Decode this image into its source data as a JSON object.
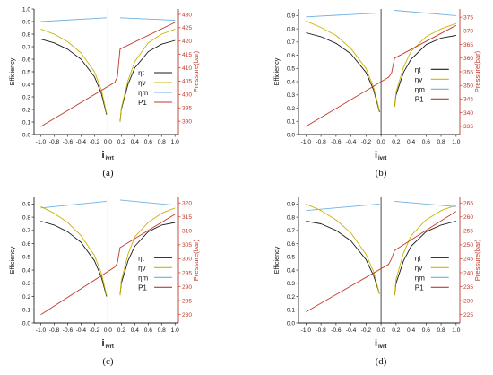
{
  "colors": {
    "eta_t": "#1a1a1a",
    "eta_v": "#c9b400",
    "eta_m": "#6fb1e3",
    "P1": "#c0392b",
    "pressure_axis": "#c0392b"
  },
  "chart_data": [
    {
      "type": "line",
      "panel_label": "(a)",
      "xlabel_main": "i",
      "xlabel_sub": "ivrt",
      "ylabel": "Efficiency",
      "y2label": "Pressure(bar)",
      "xlim": [
        -1.1,
        1.05
      ],
      "ylim": [
        0,
        1.0
      ],
      "y2lim": [
        385,
        432
      ],
      "xticks": [
        -1.0,
        -0.8,
        -0.6,
        -0.4,
        -0.2,
        0.0,
        0.2,
        0.4,
        0.6,
        0.8,
        1.0
      ],
      "xtick_labels": [
        "-1.0",
        "-0.8",
        "-0.6",
        "-0.4",
        "-0.2",
        "0.0",
        "0.2",
        "0.4",
        "0.6",
        "0.8",
        "1.0"
      ],
      "yticks": [
        0.0,
        0.1,
        0.2,
        0.3,
        0.4,
        0.5,
        0.6,
        0.7,
        0.8,
        0.9,
        1.0
      ],
      "ytick_labels": [
        "0.0",
        "0.1",
        "0.2",
        "0.3",
        "0.4",
        "0.5",
        "0.6",
        "0.7",
        "0.8",
        "0.9",
        "1.0"
      ],
      "y2ticks": [
        390,
        395,
        400,
        405,
        410,
        415,
        420,
        425,
        430
      ],
      "y2tick_labels": [
        "390",
        "395",
        "400",
        "405",
        "410",
        "415",
        "420",
        "425",
        "430"
      ],
      "series": [
        {
          "name": "ηt",
          "axis": "left",
          "color_key": "eta_t",
          "segments": [
            {
              "x": [
                -1.0,
                -0.8,
                -0.6,
                -0.4,
                -0.2,
                -0.1,
                -0.02
              ],
              "y": [
                0.76,
                0.73,
                0.68,
                0.6,
                0.46,
                0.33,
                0.16
              ]
            },
            {
              "x": [
                0.18,
                0.2,
                0.3,
                0.4,
                0.6,
                0.8,
                1.0
              ],
              "y": [
                0.1,
                0.2,
                0.4,
                0.53,
                0.66,
                0.72,
                0.75
              ]
            }
          ]
        },
        {
          "name": "ηv",
          "axis": "left",
          "color_key": "eta_v",
          "segments": [
            {
              "x": [
                -1.0,
                -0.8,
                -0.6,
                -0.4,
                -0.2,
                -0.1,
                -0.02
              ],
              "y": [
                0.84,
                0.8,
                0.74,
                0.65,
                0.5,
                0.36,
                0.17
              ]
            },
            {
              "x": [
                0.18,
                0.2,
                0.3,
                0.4,
                0.6,
                0.8,
                1.0
              ],
              "y": [
                0.1,
                0.21,
                0.43,
                0.58,
                0.73,
                0.8,
                0.84
              ]
            }
          ]
        },
        {
          "name": "ηm",
          "axis": "left",
          "color_key": "eta_m",
          "segments": [
            {
              "x": [
                -1.0,
                -0.02
              ],
              "y": [
                0.9,
                0.93
              ]
            },
            {
              "x": [
                0.18,
                1.0
              ],
              "y": [
                0.93,
                0.91
              ]
            }
          ]
        },
        {
          "name": "P1",
          "axis": "right",
          "color_key": "P1",
          "segments": [
            {
              "x": [
                -1.0,
                0.1,
                0.14,
                0.18,
                1.0
              ],
              "y": [
                388,
                404.5,
                406.5,
                417,
                427
              ]
            }
          ]
        }
      ]
    },
    {
      "type": "line",
      "panel_label": "(b)",
      "xlabel_main": "i",
      "xlabel_sub": "ivrt",
      "ylabel": "Efficiency",
      "y2label": "Pressure(bar)",
      "xlim": [
        -1.1,
        1.05
      ],
      "ylim": [
        0,
        0.95
      ],
      "y2lim": [
        332,
        378
      ],
      "xticks": [
        -1.0,
        -0.8,
        -0.6,
        -0.4,
        -0.2,
        0.0,
        0.2,
        0.4,
        0.6,
        0.8,
        1.0
      ],
      "xtick_labels": [
        "-1.0",
        "-0.8",
        "-0.6",
        "-0.4",
        "-0.2",
        "0.0",
        "0.2",
        "0.4",
        "0.6",
        "0.8",
        "1.0"
      ],
      "yticks": [
        0.0,
        0.1,
        0.2,
        0.3,
        0.4,
        0.5,
        0.6,
        0.7,
        0.8,
        0.9
      ],
      "ytick_labels": [
        "0.0",
        "0.1",
        "0.2",
        "0.3",
        "0.4",
        "0.5",
        "0.6",
        "0.7",
        "0.8",
        "0.9"
      ],
      "y2ticks": [
        335,
        340,
        345,
        350,
        355,
        360,
        365,
        370,
        375
      ],
      "y2tick_labels": [
        "335",
        "340",
        "345",
        "350",
        "355",
        "360",
        "365",
        "370",
        "375"
      ],
      "series": [
        {
          "name": "ηt",
          "axis": "left",
          "color_key": "eta_t",
          "segments": [
            {
              "x": [
                -1.0,
                -0.8,
                -0.6,
                -0.4,
                -0.2,
                -0.1,
                -0.02
              ],
              "y": [
                0.77,
                0.74,
                0.69,
                0.61,
                0.47,
                0.34,
                0.17
              ]
            },
            {
              "x": [
                0.18,
                0.2,
                0.3,
                0.4,
                0.6,
                0.8,
                1.0
              ],
              "y": [
                0.21,
                0.3,
                0.47,
                0.57,
                0.68,
                0.73,
                0.75
              ]
            }
          ]
        },
        {
          "name": "ηv",
          "axis": "left",
          "color_key": "eta_v",
          "segments": [
            {
              "x": [
                -1.0,
                -0.8,
                -0.6,
                -0.4,
                -0.2,
                -0.1,
                -0.02
              ],
              "y": [
                0.86,
                0.81,
                0.75,
                0.65,
                0.5,
                0.36,
                0.18
              ]
            },
            {
              "x": [
                0.18,
                0.2,
                0.3,
                0.4,
                0.6,
                0.8,
                1.0
              ],
              "y": [
                0.21,
                0.32,
                0.51,
                0.63,
                0.74,
                0.8,
                0.84
              ]
            }
          ]
        },
        {
          "name": "ηm",
          "axis": "left",
          "color_key": "eta_m",
          "segments": [
            {
              "x": [
                -1.0,
                -0.02
              ],
              "y": [
                0.89,
                0.92
              ]
            },
            {
              "x": [
                0.18,
                1.0
              ],
              "y": [
                0.94,
                0.9
              ]
            }
          ]
        },
        {
          "name": "P1",
          "axis": "right",
          "color_key": "P1",
          "segments": [
            {
              "x": [
                -1.0,
                0.1,
                0.14,
                0.18,
                1.0
              ],
              "y": [
                335,
                353,
                354.5,
                360,
                372
              ]
            }
          ]
        }
      ]
    },
    {
      "type": "line",
      "panel_label": "(c)",
      "xlabel_main": "i",
      "xlabel_sub": "ivrt",
      "ylabel": "Efficiency",
      "y2label": "Pressure(bar)",
      "xlim": [
        -1.1,
        1.05
      ],
      "ylim": [
        0,
        0.95
      ],
      "y2lim": [
        277,
        322
      ],
      "xticks": [
        -1.0,
        -0.8,
        -0.6,
        -0.4,
        -0.2,
        0.0,
        0.2,
        0.4,
        0.6,
        0.8,
        1.0
      ],
      "xtick_labels": [
        "-1.0",
        "-0.8",
        "-0.6",
        "-0.4",
        "-0.2",
        "0.0",
        "0.2",
        "0.4",
        "0.6",
        "0.8",
        "1.0"
      ],
      "yticks": [
        0.0,
        0.1,
        0.2,
        0.3,
        0.4,
        0.5,
        0.6,
        0.7,
        0.8,
        0.9
      ],
      "ytick_labels": [
        "0.0",
        "0.1",
        "0.2",
        "0.3",
        "0.4",
        "0.5",
        "0.6",
        "0.7",
        "0.8",
        "0.9"
      ],
      "y2ticks": [
        280,
        285,
        290,
        295,
        300,
        305,
        310,
        315,
        320
      ],
      "y2tick_labels": [
        "280",
        "285",
        "290",
        "295",
        "300",
        "305",
        "310",
        "315",
        "320"
      ],
      "series": [
        {
          "name": "ηt",
          "axis": "left",
          "color_key": "eta_t",
          "segments": [
            {
              "x": [
                -1.0,
                -0.8,
                -0.6,
                -0.4,
                -0.2,
                -0.1,
                -0.02
              ],
              "y": [
                0.77,
                0.74,
                0.69,
                0.61,
                0.47,
                0.35,
                0.2
              ]
            },
            {
              "x": [
                0.18,
                0.2,
                0.3,
                0.4,
                0.6,
                0.8,
                1.0
              ],
              "y": [
                0.21,
                0.3,
                0.47,
                0.58,
                0.69,
                0.74,
                0.76
              ]
            }
          ]
        },
        {
          "name": "ηv",
          "axis": "left",
          "color_key": "eta_v",
          "segments": [
            {
              "x": [
                -1.0,
                -0.8,
                -0.6,
                -0.4,
                -0.2,
                -0.1,
                -0.02
              ],
              "y": [
                0.88,
                0.83,
                0.76,
                0.66,
                0.51,
                0.38,
                0.21
              ]
            },
            {
              "x": [
                0.18,
                0.2,
                0.3,
                0.4,
                0.6,
                0.8,
                1.0
              ],
              "y": [
                0.21,
                0.32,
                0.52,
                0.65,
                0.76,
                0.83,
                0.87
              ]
            }
          ]
        },
        {
          "name": "ηm",
          "axis": "left",
          "color_key": "eta_m",
          "segments": [
            {
              "x": [
                -1.0,
                -0.02
              ],
              "y": [
                0.87,
                0.92
              ]
            },
            {
              "x": [
                0.18,
                1.0
              ],
              "y": [
                0.93,
                0.89
              ]
            }
          ]
        },
        {
          "name": "P1",
          "axis": "right",
          "color_key": "P1",
          "segments": [
            {
              "x": [
                -1.0,
                0.1,
                0.14,
                0.18,
                1.0
              ],
              "y": [
                280,
                297,
                298.5,
                304,
                316
              ]
            }
          ]
        }
      ]
    },
    {
      "type": "line",
      "panel_label": "(d)",
      "xlabel_main": "i",
      "xlabel_sub": "ivrt",
      "ylabel": "Efficiency",
      "y2label": "Pressure(bar)",
      "xlim": [
        -1.1,
        1.05
      ],
      "ylim": [
        0,
        0.95
      ],
      "y2lim": [
        222,
        267
      ],
      "xticks": [
        -1.0,
        -0.8,
        -0.6,
        -0.4,
        -0.2,
        0.0,
        0.2,
        0.4,
        0.6,
        0.8,
        1.0
      ],
      "xtick_labels": [
        "-1.0",
        "-0.8",
        "-0.6",
        "-0.4",
        "-0.2",
        "0.0",
        "0.2",
        "0.4",
        "0.6",
        "0.8",
        "1.0"
      ],
      "yticks": [
        0.0,
        0.1,
        0.2,
        0.3,
        0.4,
        0.5,
        0.6,
        0.7,
        0.8,
        0.9
      ],
      "ytick_labels": [
        "0.0",
        "0.1",
        "0.2",
        "0.3",
        "0.4",
        "0.5",
        "0.6",
        "0.7",
        "0.8",
        "0.9"
      ],
      "y2ticks": [
        225,
        230,
        235,
        240,
        245,
        250,
        255,
        260,
        265
      ],
      "y2tick_labels": [
        "225",
        "230",
        "235",
        "240",
        "245",
        "250",
        "255",
        "260",
        "265"
      ],
      "series": [
        {
          "name": "ηt",
          "axis": "left",
          "color_key": "eta_t",
          "segments": [
            {
              "x": [
                -1.0,
                -0.8,
                -0.6,
                -0.4,
                -0.2,
                -0.1,
                -0.02
              ],
              "y": [
                0.77,
                0.75,
                0.7,
                0.62,
                0.48,
                0.36,
                0.22
              ]
            },
            {
              "x": [
                0.18,
                0.2,
                0.3,
                0.4,
                0.6,
                0.8,
                1.0
              ],
              "y": [
                0.21,
                0.3,
                0.47,
                0.58,
                0.69,
                0.74,
                0.77
              ]
            }
          ]
        },
        {
          "name": "ηv",
          "axis": "left",
          "color_key": "eta_v",
          "segments": [
            {
              "x": [
                -1.0,
                -0.8,
                -0.6,
                -0.4,
                -0.2,
                -0.1,
                -0.02
              ],
              "y": [
                0.9,
                0.85,
                0.78,
                0.68,
                0.52,
                0.39,
                0.22
              ]
            },
            {
              "x": [
                0.18,
                0.2,
                0.3,
                0.4,
                0.6,
                0.8,
                1.0
              ],
              "y": [
                0.21,
                0.33,
                0.53,
                0.66,
                0.78,
                0.85,
                0.89
              ]
            }
          ]
        },
        {
          "name": "ηm",
          "axis": "left",
          "color_key": "eta_m",
          "segments": [
            {
              "x": [
                -1.0,
                -0.02
              ],
              "y": [
                0.85,
                0.9
              ]
            },
            {
              "x": [
                0.18,
                1.0
              ],
              "y": [
                0.92,
                0.88
              ]
            }
          ]
        },
        {
          "name": "P1",
          "axis": "right",
          "color_key": "P1",
          "segments": [
            {
              "x": [
                -1.0,
                0.1,
                0.14,
                0.18,
                1.0
              ],
              "y": [
                226,
                243,
                245,
                248,
                262
              ]
            }
          ]
        }
      ]
    }
  ]
}
